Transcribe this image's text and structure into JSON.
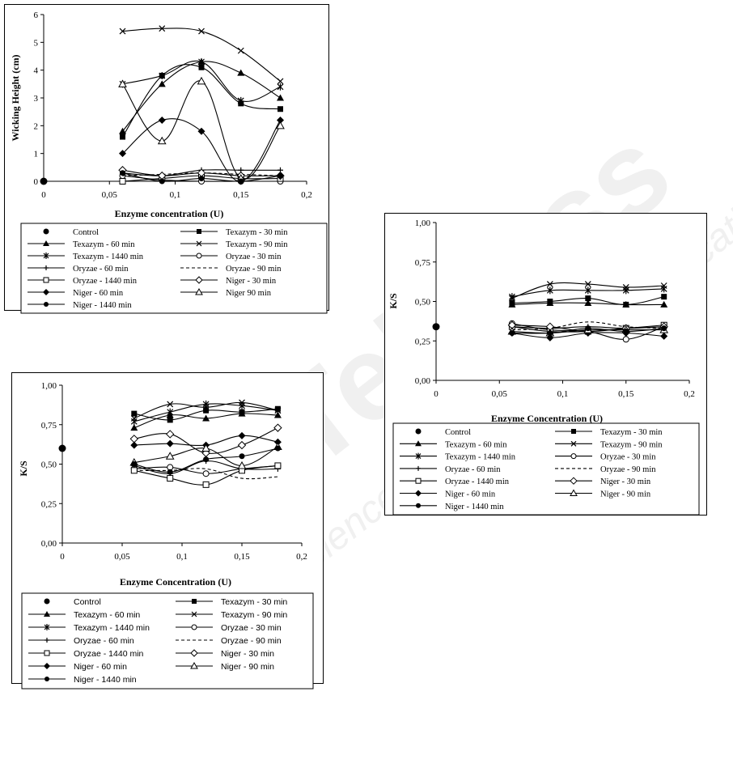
{
  "colors": {
    "line": "#000000",
    "frame": "#000000",
    "background": "#ffffff",
    "watermark": "#f2f2f2"
  },
  "watermark_text": [
    "SciTePress",
    "Science and Technology Publications"
  ],
  "legend_labels": [
    "Control",
    "Texazym - 30 min",
    "Texazym - 60 min",
    "Texazym - 90 min",
    "Texazym - 1440 min",
    "Oryzae - 30 min",
    "Oryzae - 60 min",
    "Oryzae - 90 min",
    "Oryzae - 1440 min",
    "Niger - 30 min",
    "Niger - 60 min",
    "Niger 90 min",
    "Niger - 1440 min"
  ],
  "chart_data": [
    {
      "type": "line",
      "title": "",
      "xlabel": "Enzyme concentration (U)",
      "ylabel": "Wicking Height (cm)",
      "xlim": [
        0,
        0.2
      ],
      "ylim": [
        0,
        6
      ],
      "xticks": [
        "0",
        "0,05",
        "0,1",
        "0,15",
        "0,2"
      ],
      "yticks": [
        "0",
        "1",
        "2",
        "3",
        "4",
        "5",
        "6"
      ],
      "legend_position": "bottom",
      "control": {
        "name": "Control",
        "x": 0,
        "y": 0
      },
      "x": [
        0.06,
        0.09,
        0.12,
        0.15,
        0.18
      ],
      "series": [
        {
          "name": "Texazym - 30 min",
          "marker": "square-filled",
          "dash": false,
          "values": [
            1.6,
            3.8,
            4.1,
            2.8,
            2.6
          ]
        },
        {
          "name": "Texazym - 60 min",
          "marker": "triangle-filled",
          "dash": false,
          "values": [
            1.8,
            3.5,
            4.3,
            3.9,
            3.0
          ]
        },
        {
          "name": "Texazym - 90 min",
          "marker": "x",
          "dash": false,
          "values": [
            5.4,
            5.5,
            5.4,
            4.7,
            3.6
          ]
        },
        {
          "name": "Texazym - 1440 min",
          "marker": "star",
          "dash": false,
          "values": [
            3.5,
            3.8,
            4.3,
            2.9,
            3.4
          ]
        },
        {
          "name": "Oryzae - 30 min",
          "marker": "circle-open",
          "dash": false,
          "values": [
            0.2,
            0.05,
            0.0,
            0.0,
            0.0
          ]
        },
        {
          "name": "Oryzae - 60 min",
          "marker": "plus",
          "dash": false,
          "values": [
            0.3,
            0.2,
            0.4,
            0.4,
            0.4
          ]
        },
        {
          "name": "Oryzae - 90 min",
          "marker": "none",
          "dash": true,
          "values": [
            0.2,
            0.25,
            0.3,
            0.25,
            0.2
          ]
        },
        {
          "name": "Oryzae - 1440 min",
          "marker": "square-open",
          "dash": false,
          "values": [
            0.0,
            0.1,
            0.2,
            0.1,
            0.1
          ]
        },
        {
          "name": "Niger - 30 min",
          "marker": "diamond-open",
          "dash": false,
          "values": [
            0.4,
            0.2,
            0.3,
            0.2,
            0.2
          ]
        },
        {
          "name": "Niger - 60 min",
          "marker": "diamond-filled",
          "dash": false,
          "values": [
            1.0,
            2.2,
            1.8,
            0.0,
            2.2
          ]
        },
        {
          "name": "Niger 90 min",
          "marker": "triangle-open",
          "dash": false,
          "values": [
            3.5,
            1.45,
            3.6,
            0.1,
            2.0
          ]
        },
        {
          "name": "Niger - 1440 min",
          "marker": "circle-filled",
          "dash": false,
          "values": [
            0.3,
            0.0,
            0.1,
            0.0,
            0.2
          ]
        }
      ]
    },
    {
      "type": "line",
      "title": "",
      "xlabel": "Enzyme Concentration (U)",
      "ylabel": "K/S",
      "xlim": [
        0,
        0.2
      ],
      "ylim": [
        0,
        1
      ],
      "xticks": [
        "0",
        "0,05",
        "0,1",
        "0,15",
        "0,2"
      ],
      "yticks": [
        "0,00",
        "0,25",
        "0,50",
        "0,75",
        "1,00"
      ],
      "legend_position": "bottom",
      "control": {
        "name": "Control",
        "x": 0,
        "y": 0.34
      },
      "x": [
        0.06,
        0.09,
        0.12,
        0.15,
        0.18
      ],
      "series": [
        {
          "name": "Texazym - 30 min",
          "marker": "square-filled",
          "dash": false,
          "values": [
            0.49,
            0.5,
            0.52,
            0.48,
            0.53
          ]
        },
        {
          "name": "Texazym - 60 min",
          "marker": "triangle-filled",
          "dash": false,
          "values": [
            0.48,
            0.49,
            0.49,
            0.48,
            0.48
          ]
        },
        {
          "name": "Texazym - 90 min",
          "marker": "x",
          "dash": false,
          "values": [
            0.52,
            0.61,
            0.61,
            0.59,
            0.6
          ]
        },
        {
          "name": "Texazym - 1440 min",
          "marker": "star",
          "dash": false,
          "values": [
            0.53,
            0.57,
            0.57,
            0.57,
            0.58
          ]
        },
        {
          "name": "Oryzae - 30 min",
          "marker": "circle-open",
          "dash": false,
          "values": [
            0.36,
            0.32,
            0.31,
            0.26,
            0.34
          ]
        },
        {
          "name": "Oryzae - 60 min",
          "marker": "plus",
          "dash": false,
          "values": [
            0.34,
            0.33,
            0.34,
            0.33,
            0.34
          ]
        },
        {
          "name": "Oryzae - 90 min",
          "marker": "none",
          "dash": true,
          "values": [
            0.32,
            0.33,
            0.37,
            0.34,
            0.33
          ]
        },
        {
          "name": "Oryzae - 1440 min",
          "marker": "square-open",
          "dash": false,
          "values": [
            0.34,
            0.31,
            0.31,
            0.33,
            0.35
          ]
        },
        {
          "name": "Niger - 30 min",
          "marker": "diamond-open",
          "dash": false,
          "values": [
            0.35,
            0.34,
            0.31,
            0.33,
            0.34
          ]
        },
        {
          "name": "Niger - 60 min",
          "marker": "diamond-filled",
          "dash": false,
          "values": [
            0.3,
            0.27,
            0.3,
            0.3,
            0.28
          ]
        },
        {
          "name": "Niger - 90 min",
          "marker": "triangle-open",
          "dash": false,
          "values": [
            0.31,
            0.3,
            0.32,
            0.32,
            0.32
          ]
        },
        {
          "name": "Niger - 1440 min",
          "marker": "circle-filled",
          "dash": false,
          "values": [
            0.3,
            0.3,
            0.33,
            0.31,
            0.33
          ]
        }
      ]
    },
    {
      "type": "line",
      "title": "",
      "xlabel": "Enzyme  Concentration (U)",
      "ylabel": "K/S",
      "xlim": [
        0,
        0.2
      ],
      "ylim": [
        0,
        1
      ],
      "xticks": [
        "0",
        "0,05",
        "0,1",
        "0,15",
        "0,2"
      ],
      "yticks": [
        "0,00",
        "0,25",
        "0,50",
        "0,75",
        "1,00"
      ],
      "legend_position": "bottom",
      "control": {
        "name": "Control",
        "x": 0,
        "y": 0.6
      },
      "x": [
        0.06,
        0.09,
        0.12,
        0.15,
        0.18
      ],
      "series": [
        {
          "name": "Texazym - 30 min",
          "marker": "square-filled",
          "dash": false,
          "values": [
            0.82,
            0.78,
            0.84,
            0.83,
            0.85
          ]
        },
        {
          "name": "Texazym - 60 min",
          "marker": "triangle-filled",
          "dash": false,
          "values": [
            0.73,
            0.81,
            0.79,
            0.82,
            0.81
          ]
        },
        {
          "name": "Texazym - 90 min",
          "marker": "x",
          "dash": false,
          "values": [
            0.79,
            0.88,
            0.86,
            0.89,
            0.84
          ]
        },
        {
          "name": "Texazym - 1440 min",
          "marker": "star",
          "dash": false,
          "values": [
            0.77,
            0.83,
            0.88,
            0.87,
            0.84
          ]
        },
        {
          "name": "Oryzae - 30 min",
          "marker": "circle-open",
          "dash": false,
          "values": [
            0.47,
            0.48,
            0.44,
            0.47,
            0.49
          ]
        },
        {
          "name": "Oryzae - 60 min",
          "marker": "plus",
          "dash": false,
          "values": [
            0.49,
            0.44,
            0.52,
            0.47,
            0.47
          ]
        },
        {
          "name": "Oryzae - 90 min",
          "marker": "none",
          "dash": true,
          "values": [
            0.46,
            0.46,
            0.47,
            0.41,
            0.42
          ]
        },
        {
          "name": "Oryzae - 1440 min",
          "marker": "square-open",
          "dash": false,
          "values": [
            0.46,
            0.41,
            0.37,
            0.46,
            0.49
          ]
        },
        {
          "name": "Niger - 30 min",
          "marker": "diamond-open",
          "dash": false,
          "values": [
            0.66,
            0.69,
            0.57,
            0.62,
            0.73
          ]
        },
        {
          "name": "Niger - 60 min",
          "marker": "diamond-filled",
          "dash": false,
          "values": [
            0.62,
            0.63,
            0.62,
            0.68,
            0.64
          ]
        },
        {
          "name": "Niger - 90 min",
          "marker": "triangle-open",
          "dash": false,
          "values": [
            0.51,
            0.55,
            0.6,
            0.49,
            0.61
          ]
        },
        {
          "name": "Niger - 1440 min",
          "marker": "circle-filled",
          "dash": false,
          "values": [
            0.5,
            0.45,
            0.53,
            0.55,
            0.6
          ]
        }
      ]
    }
  ]
}
